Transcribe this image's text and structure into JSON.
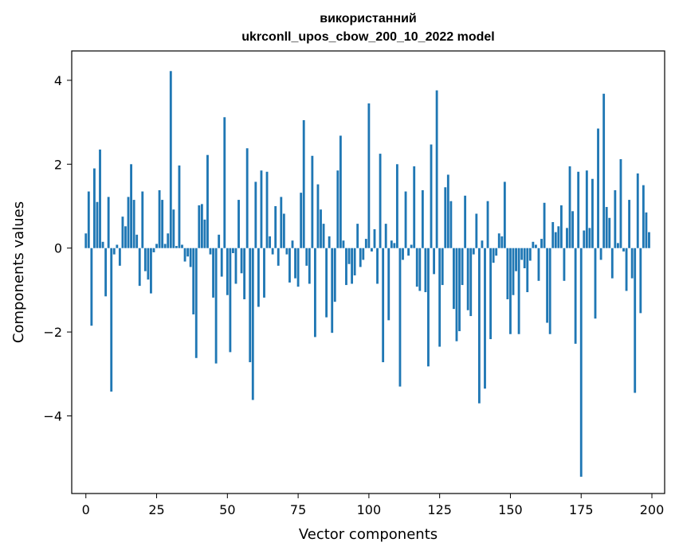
{
  "chart_data": {
    "type": "bar",
    "title": "використанний",
    "subtitle": "ukrconll_upos_cbow_200_10_2022 model",
    "xlabel": "Vector components",
    "ylabel": "Components values",
    "xlim": [
      -5,
      204.5
    ],
    "ylim": [
      -5.85,
      4.7
    ],
    "xticks": [
      0,
      25,
      50,
      75,
      100,
      125,
      150,
      175,
      200
    ],
    "yticks": [
      -4,
      -2,
      0,
      2,
      4
    ],
    "grid": false,
    "bar_color": "#1f77b4",
    "x": [
      0,
      1,
      2,
      3,
      4,
      5,
      6,
      7,
      8,
      9,
      10,
      11,
      12,
      13,
      14,
      15,
      16,
      17,
      18,
      19,
      20,
      21,
      22,
      23,
      24,
      25,
      26,
      27,
      28,
      29,
      30,
      31,
      32,
      33,
      34,
      35,
      36,
      37,
      38,
      39,
      40,
      41,
      42,
      43,
      44,
      45,
      46,
      47,
      48,
      49,
      50,
      51,
      52,
      53,
      54,
      55,
      56,
      57,
      58,
      59,
      60,
      61,
      62,
      63,
      64,
      65,
      66,
      67,
      68,
      69,
      70,
      71,
      72,
      73,
      74,
      75,
      76,
      77,
      78,
      79,
      80,
      81,
      82,
      83,
      84,
      85,
      86,
      87,
      88,
      89,
      90,
      91,
      92,
      93,
      94,
      95,
      96,
      97,
      98,
      99,
      100,
      101,
      102,
      103,
      104,
      105,
      106,
      107,
      108,
      109,
      110,
      111,
      112,
      113,
      114,
      115,
      116,
      117,
      118,
      119,
      120,
      121,
      122,
      123,
      124,
      125,
      126,
      127,
      128,
      129,
      130,
      131,
      132,
      133,
      134,
      135,
      136,
      137,
      138,
      139,
      140,
      141,
      142,
      143,
      144,
      145,
      146,
      147,
      148,
      149,
      150,
      151,
      152,
      153,
      154,
      155,
      156,
      157,
      158,
      159,
      160,
      161,
      162,
      163,
      164,
      165,
      166,
      167,
      168,
      169,
      170,
      171,
      172,
      173,
      174,
      175,
      176,
      177,
      178,
      179,
      180,
      181,
      182,
      183,
      184,
      185,
      186,
      187,
      188,
      189,
      190,
      191,
      192,
      193,
      194,
      195,
      196,
      197,
      198,
      199
    ],
    "values": [
      0.35,
      1.35,
      -1.85,
      1.9,
      1.1,
      2.35,
      0.15,
      -1.15,
      1.22,
      -3.42,
      -0.15,
      0.08,
      -0.42,
      0.75,
      0.52,
      1.22,
      2.0,
      1.15,
      0.32,
      -0.9,
      1.35,
      -0.55,
      -0.75,
      -1.08,
      -0.1,
      0.1,
      1.38,
      1.15,
      0.1,
      0.35,
      4.22,
      0.92,
      0.05,
      1.97,
      0.08,
      -0.32,
      -0.2,
      -0.45,
      -1.58,
      -2.62,
      1.02,
      1.05,
      0.68,
      2.22,
      -0.15,
      -1.18,
      -2.75,
      0.32,
      -0.68,
      3.12,
      -1.12,
      -2.48,
      -0.12,
      -0.85,
      1.15,
      -0.6,
      -1.22,
      2.38,
      -2.72,
      -3.62,
      1.58,
      -1.4,
      1.85,
      -1.18,
      1.82,
      0.28,
      -0.15,
      1.0,
      -0.42,
      1.22,
      0.82,
      -0.15,
      -0.82,
      0.18,
      -0.72,
      -0.92,
      1.32,
      3.05,
      -0.42,
      -0.85,
      2.2,
      -2.12,
      1.52,
      0.92,
      0.58,
      -1.65,
      0.28,
      -2.02,
      -1.28,
      1.85,
      2.68,
      0.18,
      -0.88,
      -0.38,
      -0.85,
      -0.65,
      0.58,
      -0.45,
      -0.28,
      0.22,
      3.45,
      -0.08,
      0.45,
      -0.85,
      2.25,
      -2.72,
      0.58,
      -1.72,
      0.18,
      0.12,
      2.0,
      -3.3,
      -0.28,
      1.35,
      -0.18,
      0.08,
      1.95,
      -0.92,
      -1.02,
      1.38,
      -1.05,
      -2.82,
      2.47,
      -0.62,
      3.76,
      -2.35,
      -0.88,
      1.45,
      1.75,
      1.12,
      -1.45,
      -2.22,
      -1.98,
      -0.88,
      1.25,
      -1.48,
      -1.62,
      -0.15,
      0.82,
      -3.7,
      0.18,
      -3.35,
      1.12,
      -2.17,
      -0.35,
      -0.18,
      0.35,
      0.28,
      1.58,
      -1.22,
      -2.05,
      -1.12,
      -0.55,
      -2.05,
      -0.28,
      -0.48,
      -1.05,
      -0.3,
      0.15,
      0.08,
      -0.78,
      0.22,
      1.08,
      -1.78,
      -2.05,
      0.62,
      0.38,
      0.52,
      1.02,
      -0.78,
      0.48,
      1.95,
      0.88,
      -2.28,
      1.82,
      -5.45,
      0.42,
      1.85,
      0.48,
      1.65,
      -1.68,
      2.85,
      -0.28,
      3.68,
      0.98,
      0.72,
      -0.72,
      1.38,
      0.12,
      2.12,
      -0.08,
      -1.02,
      1.15,
      -0.72,
      -3.45,
      1.78,
      -1.55,
      1.5,
      0.85,
      0.38
    ]
  }
}
